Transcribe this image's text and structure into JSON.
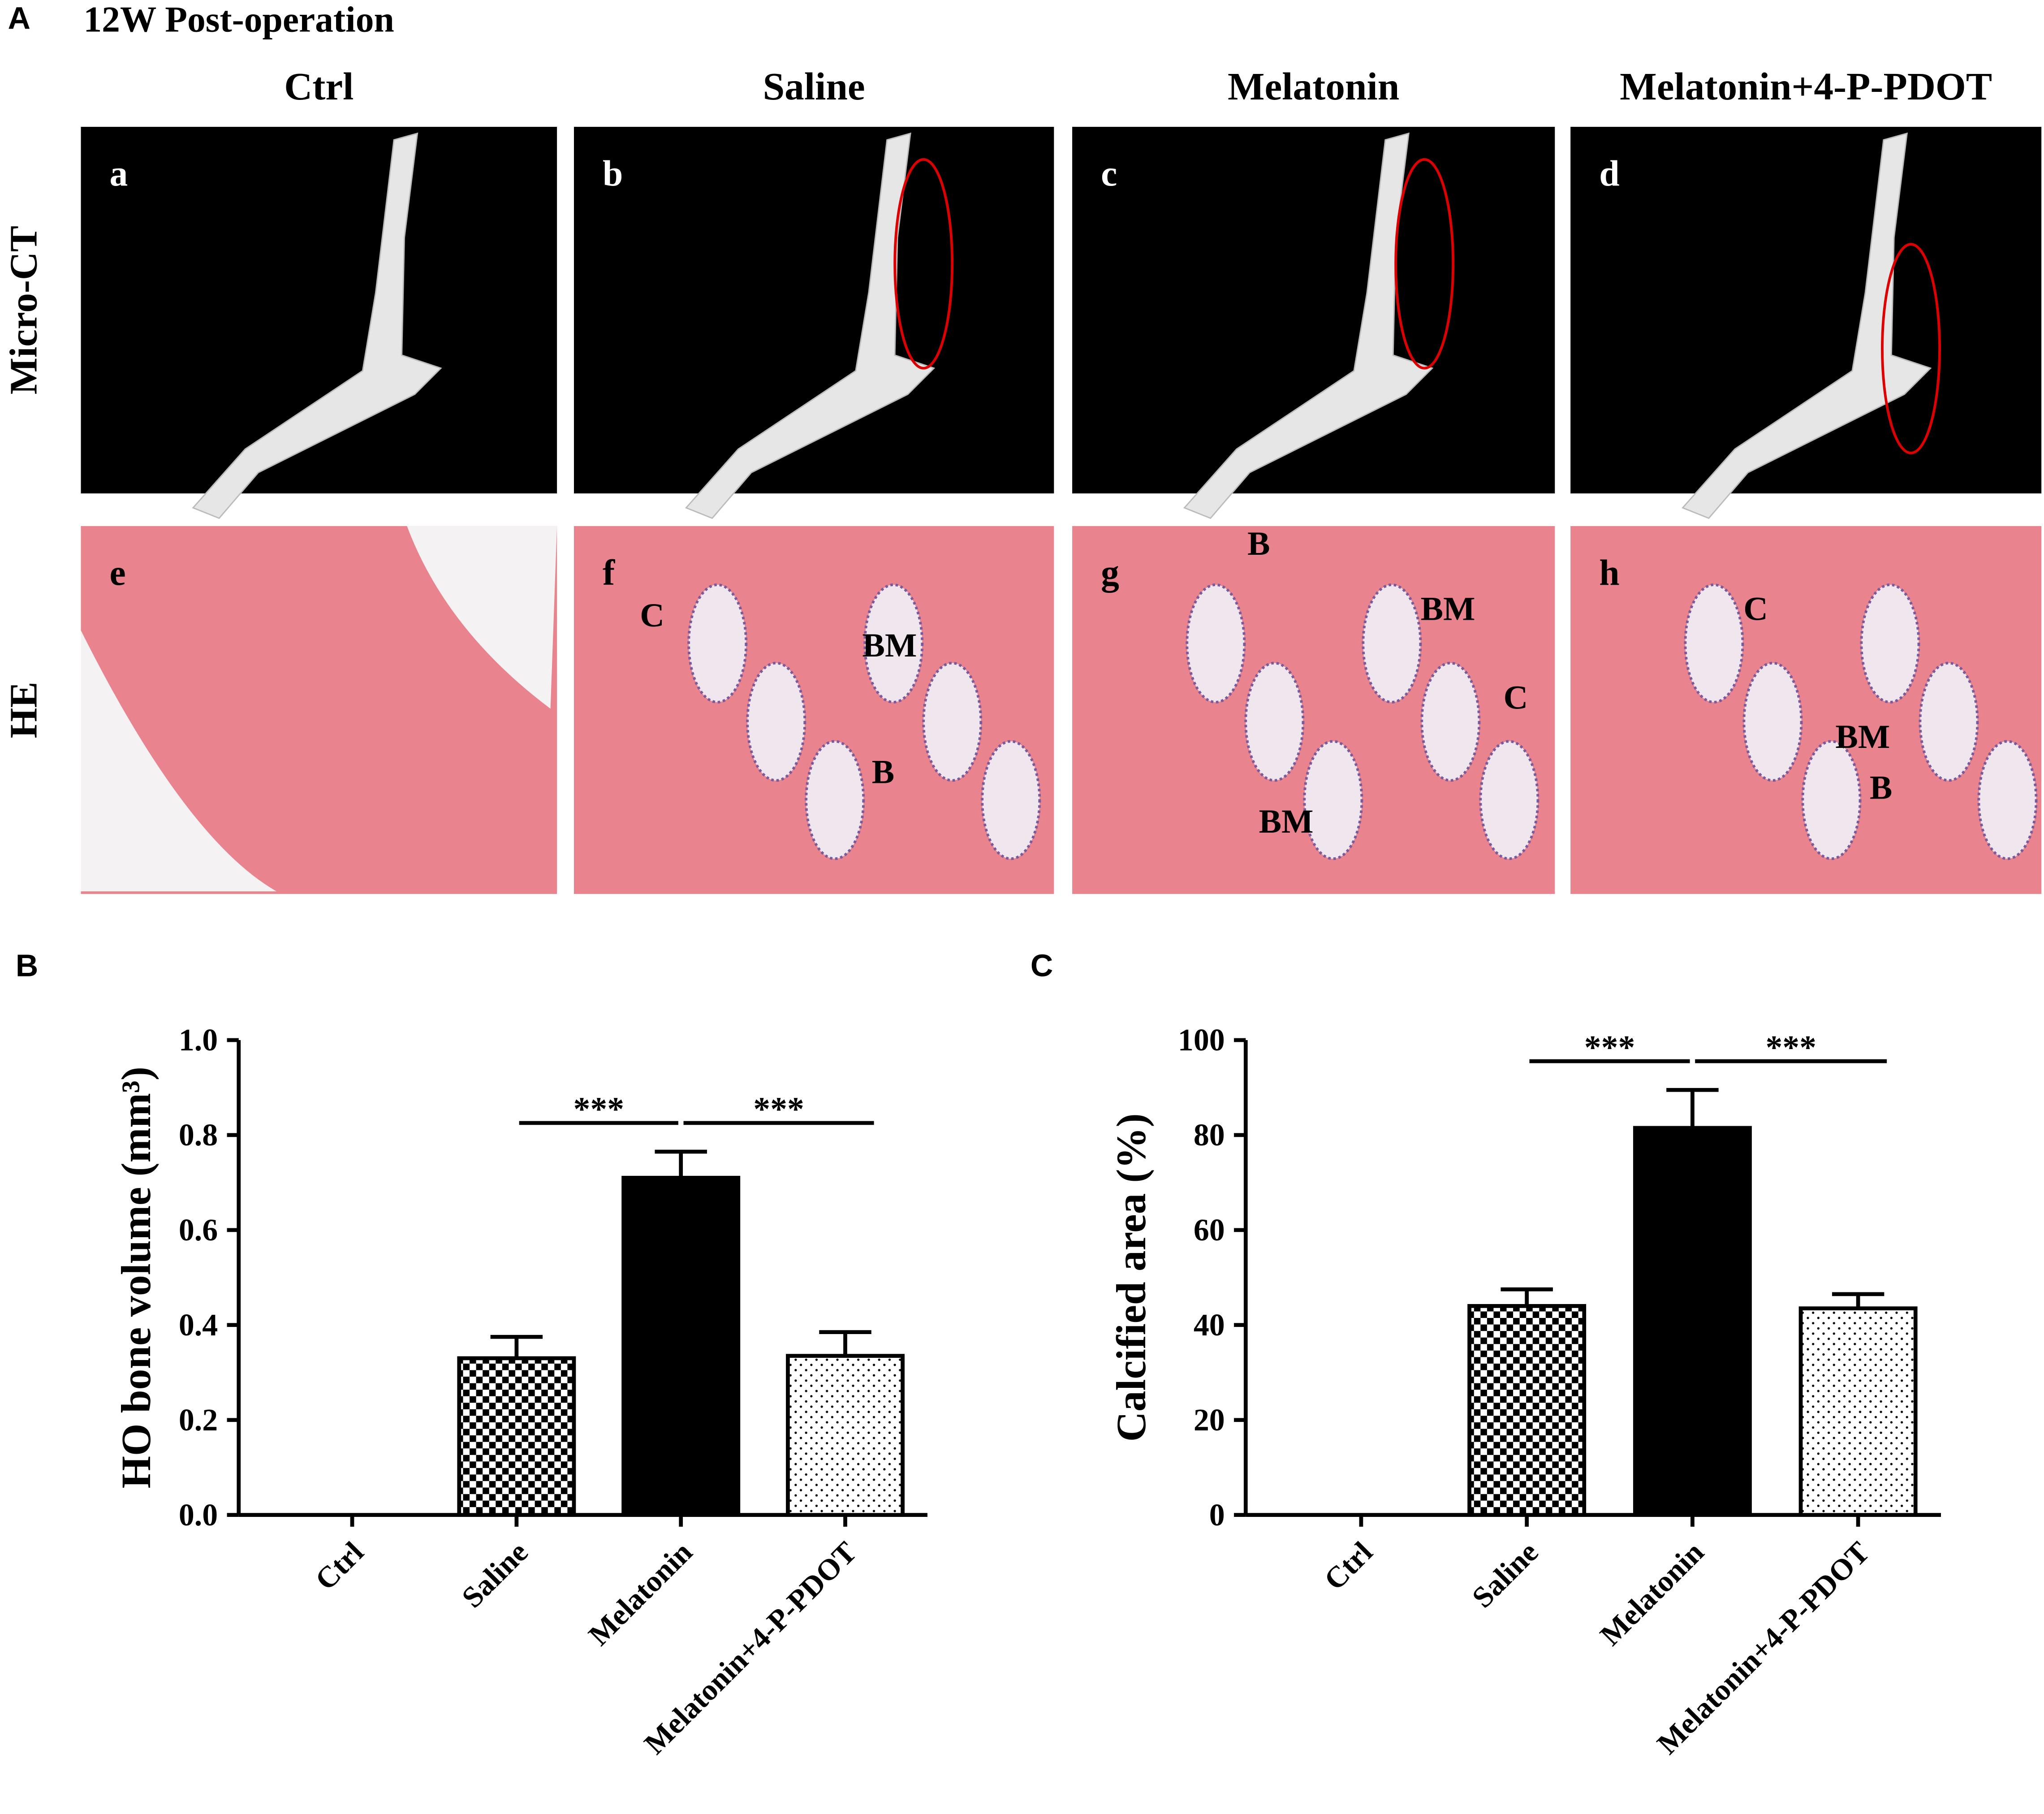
{
  "panel_a": {
    "label": "A",
    "title": "12W Post-operation",
    "columns": [
      "Ctrl",
      "Saline",
      "Melatonin",
      "Melatonin+4-P-PDOT"
    ],
    "rows": [
      "Micro-CT",
      "HE"
    ],
    "panels": [
      {
        "letter": "a",
        "labels": []
      },
      {
        "letter": "b",
        "labels": []
      },
      {
        "letter": "c",
        "labels": []
      },
      {
        "letter": "d",
        "labels": []
      },
      {
        "letter": "e",
        "labels": []
      },
      {
        "letter": "f",
        "labels": [
          "C",
          "BM",
          "B"
        ]
      },
      {
        "letter": "g",
        "labels": [
          "B",
          "BM",
          "C",
          "BM"
        ]
      },
      {
        "letter": "h",
        "labels": [
          "C",
          "BM",
          "B"
        ]
      }
    ]
  },
  "chart_data": [
    {
      "type": "bar",
      "panel": "B",
      "y_label": "HO bone volume (mm³)",
      "categories": [
        "Ctrl",
        "Saline",
        "Melatonin",
        "Melatonin+4-P-PDOT"
      ],
      "values": [
        0,
        0.33,
        0.71,
        0.335
      ],
      "errors": [
        null,
        0.045,
        0.055,
        0.05
      ],
      "patterns": [
        "solid",
        "checker",
        "solid",
        "dots"
      ],
      "color": "#000000",
      "ylim": [
        0,
        1
      ],
      "yticks": [
        {
          "value": 0,
          "label": "0.0"
        },
        0.2,
        0.4,
        0.6,
        0.8,
        {
          "value": 1,
          "label": "1.0"
        }
      ],
      "annotations": [
        {
          "text": "***",
          "categories": [
            "Saline",
            "Melatonin"
          ]
        },
        {
          "text": "***",
          "categories": [
            "Melatonin",
            "Melatonin+4-P-PDOT"
          ]
        }
      ]
    },
    {
      "type": "bar",
      "panel": "C",
      "y_label": "Calcified area  (%)",
      "categories": [
        "Ctrl",
        "Saline",
        "Melatonin",
        "Melatonin+4-P-PDOT"
      ],
      "values": [
        0,
        44,
        81.5,
        43.5
      ],
      "errors": [
        null,
        3.5,
        8,
        3
      ],
      "patterns": [
        "solid",
        "checker",
        "solid",
        "dots"
      ],
      "color": "#000000",
      "ylim": [
        0,
        100
      ],
      "yticks": [
        0,
        20,
        40,
        60,
        80,
        100
      ],
      "annotations": [
        {
          "text": "***",
          "categories": [
            "Saline",
            "Melatonin"
          ]
        },
        {
          "text": "***",
          "categories": [
            "Melatonin",
            "Melatonin+4-P-PDOT"
          ]
        }
      ]
    }
  ]
}
